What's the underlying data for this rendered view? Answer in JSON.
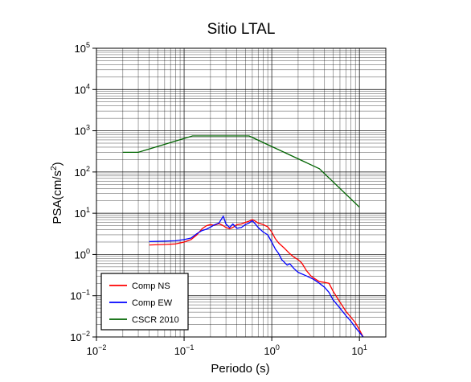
{
  "chart_data": {
    "type": "line",
    "title": "Sitio LTAL",
    "xlabel": "Periodo (s)",
    "ylabel": "PSA(cm/s²)",
    "ylabel_base": "PSA(cm/s",
    "ylabel_sup": "2",
    "ylabel_close": ")",
    "x_scale": "log",
    "y_scale": "log",
    "xlim": [
      0.01,
      20
    ],
    "ylim": [
      0.01,
      100000
    ],
    "grid": true,
    "legend_position": "bottom-left",
    "x_ticks": [
      {
        "exp": -2,
        "base": "10",
        "sup": "−2"
      },
      {
        "exp": -1,
        "base": "10",
        "sup": "−1"
      },
      {
        "exp": 0,
        "base": "10",
        "sup": "0"
      },
      {
        "exp": 1,
        "base": "10",
        "sup": "1"
      }
    ],
    "y_ticks": [
      {
        "exp": -2,
        "base": "10",
        "sup": "−2"
      },
      {
        "exp": -1,
        "base": "10",
        "sup": "−1"
      },
      {
        "exp": 0,
        "base": "10",
        "sup": "0"
      },
      {
        "exp": 1,
        "base": "10",
        "sup": "1"
      },
      {
        "exp": 2,
        "base": "10",
        "sup": "2"
      },
      {
        "exp": 3,
        "base": "10",
        "sup": "3"
      },
      {
        "exp": 4,
        "base": "10",
        "sup": "4"
      },
      {
        "exp": 5,
        "base": "10",
        "sup": "5"
      }
    ],
    "series": [
      {
        "name": "Comp NS",
        "color": "#ff0000",
        "points": [
          [
            0.04,
            1.7
          ],
          [
            0.06,
            1.75
          ],
          [
            0.08,
            1.8
          ],
          [
            0.1,
            2.0
          ],
          [
            0.12,
            2.3
          ],
          [
            0.14,
            3.0
          ],
          [
            0.16,
            4.2
          ],
          [
            0.18,
            5.0
          ],
          [
            0.2,
            5.3
          ],
          [
            0.22,
            5.1
          ],
          [
            0.25,
            5.6
          ],
          [
            0.28,
            5.0
          ],
          [
            0.3,
            4.5
          ],
          [
            0.33,
            4.2
          ],
          [
            0.36,
            4.5
          ],
          [
            0.4,
            5.3
          ],
          [
            0.45,
            5.5
          ],
          [
            0.5,
            6.0
          ],
          [
            0.55,
            6.4
          ],
          [
            0.6,
            7.0
          ],
          [
            0.65,
            6.4
          ],
          [
            0.7,
            5.8
          ],
          [
            0.8,
            5.3
          ],
          [
            0.9,
            4.7
          ],
          [
            1.0,
            3.5
          ],
          [
            1.1,
            2.4
          ],
          [
            1.2,
            1.9
          ],
          [
            1.4,
            1.4
          ],
          [
            1.6,
            1.05
          ],
          [
            1.8,
            0.85
          ],
          [
            2.0,
            0.75
          ],
          [
            2.2,
            0.62
          ],
          [
            2.5,
            0.4
          ],
          [
            2.8,
            0.3
          ],
          [
            3.0,
            0.27
          ],
          [
            3.5,
            0.22
          ],
          [
            4.0,
            0.21
          ],
          [
            4.5,
            0.2
          ],
          [
            5.0,
            0.13
          ],
          [
            6.0,
            0.07
          ],
          [
            7.0,
            0.042
          ],
          [
            8.0,
            0.03
          ],
          [
            9.0,
            0.022
          ],
          [
            10.0,
            0.015
          ],
          [
            11.0,
            0.0101
          ]
        ]
      },
      {
        "name": "Comp EW",
        "color": "#0000ff",
        "points": [
          [
            0.04,
            2.05
          ],
          [
            0.06,
            2.1
          ],
          [
            0.08,
            2.15
          ],
          [
            0.1,
            2.3
          ],
          [
            0.12,
            2.5
          ],
          [
            0.14,
            3.2
          ],
          [
            0.16,
            3.8
          ],
          [
            0.18,
            4.1
          ],
          [
            0.2,
            4.6
          ],
          [
            0.22,
            5.2
          ],
          [
            0.25,
            5.8
          ],
          [
            0.28,
            8.5
          ],
          [
            0.3,
            5.5
          ],
          [
            0.33,
            4.5
          ],
          [
            0.36,
            5.5
          ],
          [
            0.4,
            4.3
          ],
          [
            0.45,
            4.5
          ],
          [
            0.5,
            5.3
          ],
          [
            0.55,
            5.8
          ],
          [
            0.6,
            6.6
          ],
          [
            0.65,
            5.5
          ],
          [
            0.7,
            4.5
          ],
          [
            0.8,
            3.5
          ],
          [
            0.9,
            3.0
          ],
          [
            1.0,
            2.0
          ],
          [
            1.1,
            1.35
          ],
          [
            1.2,
            1.05
          ],
          [
            1.3,
            0.75
          ],
          [
            1.5,
            0.55
          ],
          [
            1.6,
            0.6
          ],
          [
            1.8,
            0.45
          ],
          [
            2.0,
            0.37
          ],
          [
            2.5,
            0.3
          ],
          [
            3.0,
            0.25
          ],
          [
            3.5,
            0.2
          ],
          [
            4.0,
            0.16
          ],
          [
            4.5,
            0.12
          ],
          [
            5.0,
            0.08
          ],
          [
            6.0,
            0.05
          ],
          [
            7.0,
            0.033
          ],
          [
            8.0,
            0.024
          ],
          [
            9.0,
            0.017
          ],
          [
            10.0,
            0.013
          ],
          [
            11.0,
            0.0101
          ]
        ]
      },
      {
        "name": "CSCR 2010",
        "color": "#006400",
        "points": [
          [
            0.02,
            300
          ],
          [
            0.03,
            300
          ],
          [
            0.125,
            750
          ],
          [
            0.55,
            750
          ],
          [
            3.5,
            120
          ],
          [
            10.0,
            14
          ]
        ]
      }
    ]
  }
}
